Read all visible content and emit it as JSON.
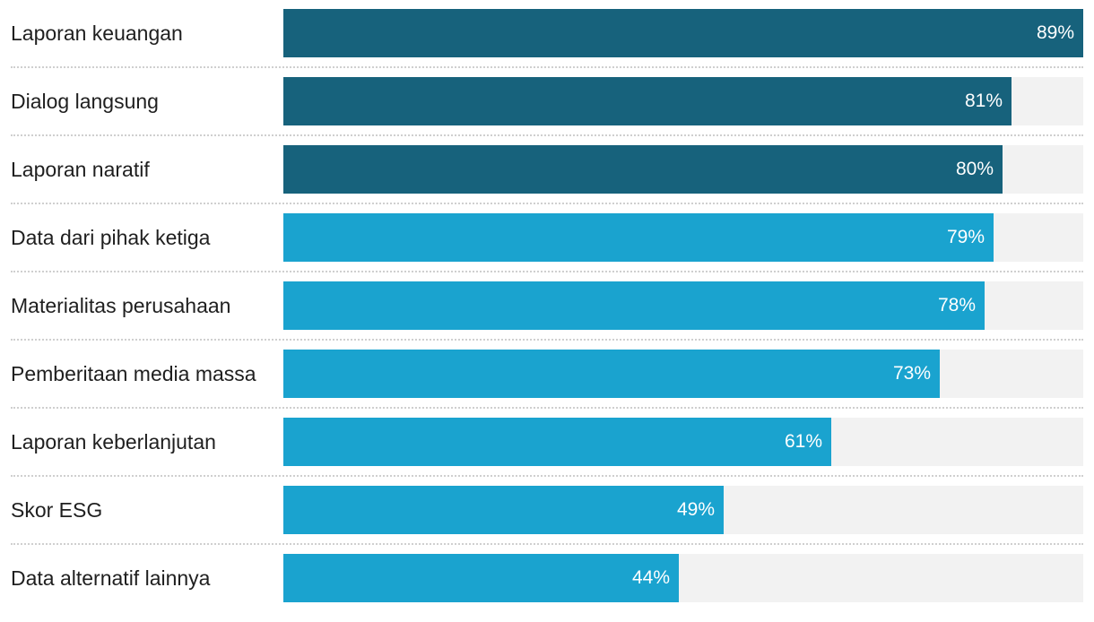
{
  "chart_data": {
    "type": "bar",
    "orientation": "horizontal",
    "categories": [
      "Laporan keuangan",
      "Dialog langsung",
      "Laporan naratif",
      "Data dari pihak ketiga",
      "Materialitas perusahaan",
      "Pemberitaan media massa",
      "Laporan keberlanjutan",
      "Skor ESG",
      "Data alternatif lainnya"
    ],
    "values": [
      89,
      81,
      80,
      79,
      78,
      73,
      61,
      49,
      44
    ],
    "value_labels": [
      "89%",
      "81%",
      "80%",
      "79%",
      "78%",
      "73%",
      "61%",
      "49%",
      "44%"
    ],
    "xlim": [
      0,
      89
    ],
    "unit": "%",
    "colors": {
      "dark": "#17627c",
      "light": "#1aa3cf",
      "track": "#f2f2f2"
    },
    "bar_color_groups": [
      "dark",
      "dark",
      "dark",
      "light",
      "light",
      "light",
      "light",
      "light",
      "light"
    ],
    "grid": false,
    "legend": "none"
  }
}
